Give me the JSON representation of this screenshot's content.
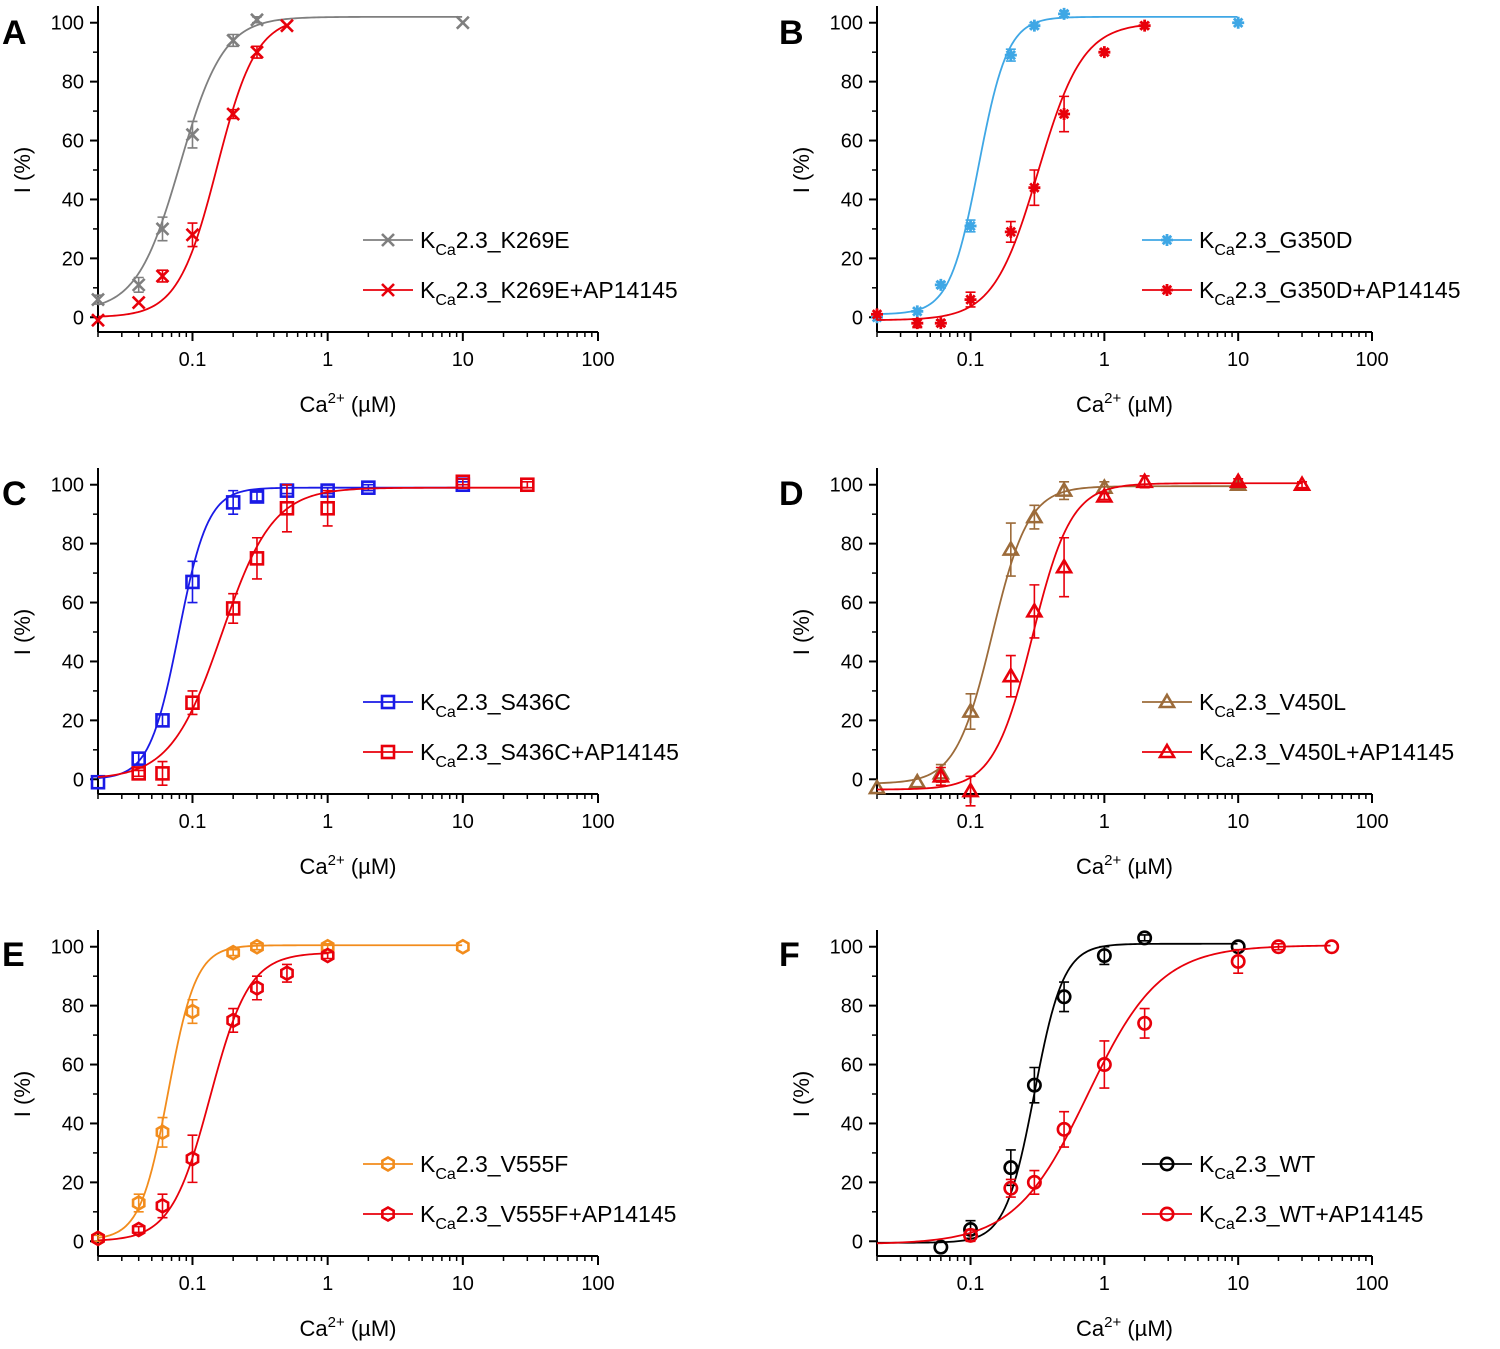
{
  "figure": {
    "title": ""
  },
  "chart_data": [
    {
      "panel": "A",
      "type": "scatter",
      "xscale": "log",
      "xlim": [
        0.02,
        100
      ],
      "ylim": [
        -5,
        105
      ],
      "xticks": [
        "0.1",
        "1",
        "10",
        "100"
      ],
      "yticks": [
        "0",
        "20",
        "40",
        "60",
        "80",
        "100"
      ],
      "xlabel": "Ca",
      "xlabel_sup": "2+",
      "xlabel_unit": " (µM)",
      "ylabel": "I (%)",
      "legend_position": "bottom-right",
      "series": [
        {
          "name": "KCa2.3_K269E",
          "label_main": "K",
          "label_sub": "Ca",
          "label_rest": "2.3_K269E",
          "color": "#7f7f7f",
          "marker": "x",
          "ec50": 0.081,
          "hill": 2.7,
          "bottom": 2,
          "top": 102,
          "x": [
            0.02,
            0.04,
            0.06,
            0.1,
            0.2,
            0.3,
            10
          ],
          "y": [
            6,
            11,
            30,
            62,
            94,
            101,
            100
          ],
          "err": [
            1.5,
            2.5,
            4,
            4.5,
            2,
            1,
            0
          ]
        },
        {
          "name": "KCa2.3_K269E+AP14145",
          "label_main": "K",
          "label_sub": "Ca",
          "label_rest": "2.3_K269E+AP14145",
          "color": "#e8000b",
          "marker": "x",
          "ec50": 0.152,
          "hill": 3.0,
          "bottom": 0,
          "top": 102,
          "x": [
            0.02,
            0.04,
            0.06,
            0.1,
            0.2,
            0.3,
            0.5
          ],
          "y": [
            -1,
            5,
            14,
            28,
            69,
            90,
            99
          ],
          "err": [
            0,
            0,
            2,
            4,
            1.5,
            2,
            0
          ]
        }
      ]
    },
    {
      "panel": "B",
      "type": "scatter",
      "xscale": "log",
      "xlim": [
        0.02,
        100
      ],
      "ylim": [
        -5,
        105
      ],
      "xticks": [
        "0.1",
        "1",
        "10",
        "100"
      ],
      "yticks": [
        "0",
        "20",
        "40",
        "60",
        "80",
        "100"
      ],
      "xlabel": "Ca",
      "xlabel_sup": "2+",
      "xlabel_unit": " (µM)",
      "ylabel": "I (%)",
      "legend_position": "bottom-right",
      "series": [
        {
          "name": "KCa2.3_G350D",
          "label_main": "K",
          "label_sub": "Ca",
          "label_rest": "2.3_G350D",
          "color": "#3fa7e5",
          "marker": "asterisk",
          "ec50": 0.115,
          "hill": 4.0,
          "bottom": 1,
          "top": 102,
          "x": [
            0.02,
            0.04,
            0.06,
            0.1,
            0.2,
            0.3,
            0.5,
            10
          ],
          "y": [
            0,
            2,
            11,
            31,
            89,
            99,
            103,
            100
          ],
          "err": [
            0,
            0,
            1,
            2,
            2,
            1,
            1,
            0
          ]
        },
        {
          "name": "KCa2.3_G350D+AP14145",
          "label_main": "K",
          "label_sub": "Ca",
          "label_rest": "2.3_G350D+AP14145",
          "color": "#e8000b",
          "marker": "asterisk",
          "ec50": 0.32,
          "hill": 2.6,
          "bottom": -1,
          "top": 100,
          "x": [
            0.02,
            0.04,
            0.06,
            0.1,
            0.2,
            0.3,
            0.5,
            1,
            2
          ],
          "y": [
            1,
            -2,
            -2,
            6,
            29,
            44,
            69,
            90,
            99
          ],
          "err": [
            0,
            1.5,
            1,
            2.5,
            3.5,
            6,
            6,
            1,
            1
          ]
        }
      ]
    },
    {
      "panel": "C",
      "type": "scatter",
      "xscale": "log",
      "xlim": [
        0.02,
        100
      ],
      "ylim": [
        -5,
        105
      ],
      "xticks": [
        "0.1",
        "1",
        "10",
        "100"
      ],
      "yticks": [
        "0",
        "20",
        "40",
        "60",
        "80",
        "100"
      ],
      "xlabel": "Ca",
      "xlabel_sup": "2+",
      "xlabel_unit": " (µM)",
      "ylabel": "I (%)",
      "legend_position": "bottom-right",
      "series": [
        {
          "name": "KCa2.3_S436C",
          "label_main": "K",
          "label_sub": "Ca",
          "label_rest": "2.3_S436C",
          "color": "#1a1ae6",
          "marker": "square",
          "ec50": 0.079,
          "hill": 4.0,
          "bottom": 0,
          "top": 99,
          "x": [
            0.02,
            0.04,
            0.06,
            0.1,
            0.2,
            0.3,
            0.5,
            1,
            2,
            10
          ],
          "y": [
            -1,
            7,
            20,
            67,
            94,
            96,
            98,
            98,
            99,
            100
          ],
          "err": [
            0,
            2,
            2,
            7,
            4,
            1.5,
            1,
            1,
            1,
            1
          ]
        },
        {
          "name": "KCa2.3_S436C+AP14145",
          "label_main": "K",
          "label_sub": "Ca",
          "label_rest": "2.3_S436C+AP14145",
          "color": "#e8000b",
          "marker": "square",
          "ec50": 0.165,
          "hill": 2.3,
          "bottom": 0,
          "top": 99,
          "x": [
            0.04,
            0.06,
            0.1,
            0.2,
            0.3,
            0.5,
            1,
            10,
            30
          ],
          "y": [
            2,
            2,
            26,
            58,
            75,
            92,
            92,
            101,
            100
          ],
          "err": [
            1,
            4,
            4,
            5,
            7,
            8,
            6,
            1,
            1
          ]
        }
      ]
    },
    {
      "panel": "D",
      "type": "scatter",
      "xscale": "log",
      "xlim": [
        0.02,
        100
      ],
      "ylim": [
        -5,
        105
      ],
      "xticks": [
        "0.1",
        "1",
        "10",
        "100"
      ],
      "yticks": [
        "0",
        "20",
        "40",
        "60",
        "80",
        "100"
      ],
      "xlabel": "Ca",
      "xlabel_sup": "2+",
      "xlabel_unit": " (µM)",
      "ylabel": "I (%)",
      "legend_position": "bottom-right",
      "series": [
        {
          "name": "KCa2.3_V450L",
          "label_main": "K",
          "label_sub": "Ca",
          "label_rest": "2.3_V450L",
          "color": "#9c6b3a",
          "marker": "triangle",
          "ec50": 0.145,
          "hill": 3.2,
          "bottom": -1.5,
          "top": 99.5,
          "x": [
            0.02,
            0.04,
            0.06,
            0.1,
            0.2,
            0.3,
            0.5,
            1,
            10
          ],
          "y": [
            -3,
            -1,
            2,
            23,
            78,
            89,
            98,
            99,
            100
          ],
          "err": [
            0,
            0,
            3,
            6,
            9,
            4,
            3,
            2,
            1
          ]
        },
        {
          "name": "KCa2.3_V450L+AP14145",
          "label_main": "K",
          "label_sub": "Ca",
          "label_rest": "2.3_V450L+AP14145",
          "color": "#e8000b",
          "marker": "triangle",
          "ec50": 0.29,
          "hill": 3.0,
          "bottom": -3.5,
          "top": 100.5,
          "x": [
            0.06,
            0.1,
            0.2,
            0.3,
            0.5,
            1,
            2,
            10,
            30
          ],
          "y": [
            1,
            -4,
            35,
            57,
            72,
            96,
            101,
            101,
            100
          ],
          "err": [
            3,
            5,
            7,
            9,
            10,
            1,
            2,
            1,
            1
          ]
        }
      ]
    },
    {
      "panel": "E",
      "type": "scatter",
      "xscale": "log",
      "xlim": [
        0.02,
        100
      ],
      "ylim": [
        -5,
        105
      ],
      "xticks": [
        "0.1",
        "1",
        "10",
        "100"
      ],
      "yticks": [
        "0",
        "20",
        "40",
        "60",
        "80",
        "100"
      ],
      "xlabel": "Ca",
      "xlabel_sup": "2+",
      "xlabel_unit": " (µM)",
      "ylabel": "I (%)",
      "legend_position": "bottom-right",
      "series": [
        {
          "name": "KCa2.3_V555F",
          "label_main": "K",
          "label_sub": "Ca",
          "label_rest": "2.3_V555F",
          "color": "#f28c1c",
          "marker": "hexagon",
          "ec50": 0.066,
          "hill": 4.2,
          "bottom": 0.5,
          "top": 100.5,
          "x": [
            0.02,
            0.04,
            0.06,
            0.1,
            0.2,
            0.3,
            1,
            10
          ],
          "y": [
            1,
            13,
            37,
            78,
            98,
            100,
            100,
            100
          ],
          "err": [
            1,
            3,
            5,
            4,
            1,
            1,
            1,
            0
          ]
        },
        {
          "name": "KCa2.3_V555F+AP14145",
          "label_main": "K",
          "label_sub": "Ca",
          "label_rest": "2.3_V555F+AP14145",
          "color": "#e8000b",
          "marker": "hexagon",
          "ec50": 0.135,
          "hill": 3.0,
          "bottom": 0,
          "top": 98,
          "x": [
            0.02,
            0.04,
            0.06,
            0.1,
            0.2,
            0.3,
            0.5,
            1
          ],
          "y": [
            1,
            4,
            12,
            28,
            75,
            86,
            91,
            97
          ],
          "err": [
            0,
            1,
            4,
            8,
            4,
            4,
            3,
            1
          ]
        }
      ]
    },
    {
      "panel": "F",
      "type": "scatter",
      "xscale": "log",
      "xlim": [
        0.02,
        100
      ],
      "ylim": [
        -5,
        105
      ],
      "xticks": [
        "0.1",
        "1",
        "10",
        "100"
      ],
      "yticks": [
        "0",
        "20",
        "40",
        "60",
        "80",
        "100"
      ],
      "xlabel": "Ca",
      "xlabel_sup": "2+",
      "xlabel_unit": " (µM)",
      "ylabel": "I (%)",
      "legend_position": "bottom-right",
      "series": [
        {
          "name": "KCa2.3_WT",
          "label_main": "K",
          "label_sub": "Ca",
          "label_rest": "2.3_WT",
          "color": "#000000",
          "marker": "circle",
          "ec50": 0.3,
          "hill": 4.0,
          "bottom": -0.5,
          "top": 101,
          "x": [
            0.06,
            0.1,
            0.2,
            0.3,
            0.5,
            1,
            2,
            10
          ],
          "y": [
            -2,
            4,
            25,
            53,
            83,
            97,
            103,
            100
          ],
          "err": [
            0,
            3,
            6,
            6,
            5,
            3,
            1,
            0
          ]
        },
        {
          "name": "KCa2.3_WT+AP14145",
          "label_main": "K",
          "label_sub": "Ca",
          "label_rest": "2.3_WT+AP14145",
          "color": "#e8000b",
          "marker": "circle",
          "ec50": 0.75,
          "hill": 1.6,
          "bottom": -1,
          "top": 100.5,
          "x": [
            0.1,
            0.2,
            0.3,
            0.5,
            1,
            2,
            10,
            20,
            50
          ],
          "y": [
            2,
            18,
            20,
            38,
            60,
            74,
            95,
            100,
            100
          ],
          "err": [
            2,
            3,
            4,
            6,
            8,
            5,
            4,
            1,
            0
          ]
        }
      ]
    }
  ]
}
